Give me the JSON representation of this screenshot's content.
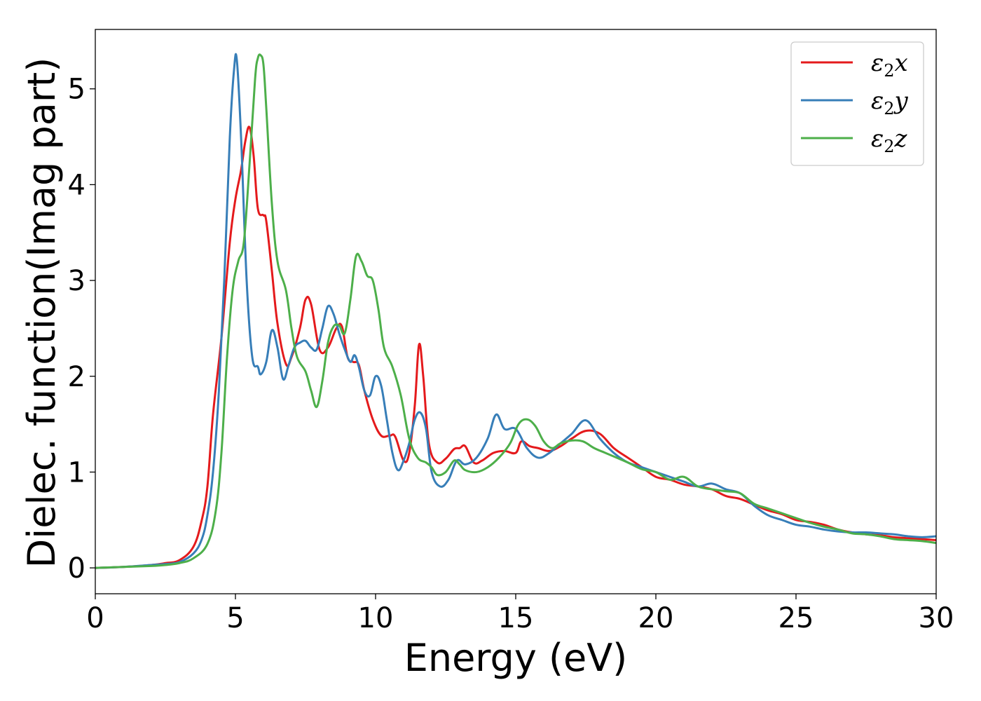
{
  "chart_data": {
    "type": "line",
    "title": "",
    "xlabel": "Energy (eV)",
    "ylabel": "Dielec. function(Imag part)",
    "xlim": [
      0,
      30
    ],
    "ylim": [
      -0.27,
      5.62
    ],
    "xticks": [
      0,
      5,
      10,
      15,
      20,
      25,
      30
    ],
    "yticks": [
      0,
      1,
      2,
      3,
      4,
      5
    ],
    "grid": false,
    "legend_position": "top-right",
    "series": [
      {
        "name": "ε2x",
        "legend_symbol": "ε",
        "legend_sub": "2",
        "legend_var": "x",
        "color": "#e41a1c",
        "x": [
          0,
          1,
          2,
          2.5,
          3,
          3.5,
          3.8,
          4.0,
          4.2,
          4.5,
          4.8,
          5.0,
          5.2,
          5.35,
          5.5,
          5.65,
          5.8,
          6.0,
          6.1,
          6.3,
          6.5,
          6.8,
          7.0,
          7.3,
          7.5,
          7.7,
          8.0,
          8.3,
          8.6,
          8.8,
          9.0,
          9.2,
          9.4,
          9.6,
          9.9,
          10.2,
          10.5,
          10.7,
          11.0,
          11.2,
          11.4,
          11.55,
          11.7,
          11.9,
          12.2,
          12.5,
          12.8,
          13.0,
          13.2,
          13.5,
          13.8,
          14.2,
          14.6,
          15.0,
          15.2,
          15.5,
          15.8,
          16.2,
          16.6,
          17.0,
          17.5,
          18.0,
          18.5,
          19.0,
          19.5,
          20.0,
          20.5,
          21.0,
          21.5,
          22.0,
          22.5,
          23.0,
          23.5,
          24.0,
          24.5,
          25.0,
          25.5,
          26.0,
          26.5,
          27.0,
          27.5,
          28.0,
          28.5,
          29.0,
          29.5,
          30.0
        ],
        "y": [
          0.0,
          0.01,
          0.03,
          0.05,
          0.08,
          0.22,
          0.5,
          0.85,
          1.6,
          2.4,
          3.4,
          3.85,
          4.15,
          4.45,
          4.6,
          4.3,
          3.75,
          3.68,
          3.62,
          3.1,
          2.55,
          2.13,
          2.2,
          2.5,
          2.8,
          2.75,
          2.28,
          2.3,
          2.5,
          2.52,
          2.2,
          2.15,
          2.12,
          1.85,
          1.55,
          1.38,
          1.38,
          1.37,
          1.12,
          1.2,
          1.7,
          2.33,
          2.0,
          1.3,
          1.1,
          1.14,
          1.24,
          1.25,
          1.27,
          1.1,
          1.12,
          1.2,
          1.22,
          1.2,
          1.32,
          1.27,
          1.25,
          1.22,
          1.27,
          1.35,
          1.43,
          1.4,
          1.25,
          1.15,
          1.05,
          0.95,
          0.92,
          0.87,
          0.85,
          0.82,
          0.75,
          0.72,
          0.66,
          0.6,
          0.56,
          0.5,
          0.48,
          0.45,
          0.4,
          0.37,
          0.35,
          0.34,
          0.32,
          0.31,
          0.3,
          0.29
        ]
      },
      {
        "name": "ε2y",
        "legend_symbol": "ε",
        "legend_sub": "2",
        "legend_var": "y",
        "color": "#377eb8",
        "x": [
          0,
          1,
          2,
          2.5,
          3,
          3.5,
          3.8,
          4.0,
          4.2,
          4.4,
          4.6,
          4.8,
          4.95,
          5.05,
          5.2,
          5.4,
          5.6,
          5.8,
          5.9,
          6.1,
          6.3,
          6.5,
          6.7,
          6.9,
          7.1,
          7.3,
          7.5,
          7.7,
          7.9,
          8.1,
          8.3,
          8.5,
          8.7,
          8.9,
          9.1,
          9.25,
          9.4,
          9.6,
          9.8,
          10.0,
          10.2,
          10.4,
          10.6,
          10.8,
          11.0,
          11.2,
          11.4,
          11.6,
          11.8,
          12.0,
          12.3,
          12.6,
          12.9,
          13.2,
          13.6,
          14.0,
          14.3,
          14.6,
          15.0,
          15.4,
          15.8,
          16.2,
          16.6,
          17.0,
          17.5,
          18.0,
          18.5,
          19.0,
          19.5,
          20.0,
          20.5,
          21.0,
          21.5,
          22.0,
          22.5,
          23.0,
          23.5,
          24.0,
          24.5,
          25.0,
          25.5,
          26.0,
          26.5,
          27.0,
          27.5,
          28.0,
          28.5,
          29.0,
          29.5,
          30.0
        ],
        "y": [
          0.0,
          0.01,
          0.03,
          0.04,
          0.06,
          0.15,
          0.3,
          0.55,
          1.0,
          1.8,
          3.0,
          4.5,
          5.2,
          5.3,
          4.5,
          3.0,
          2.2,
          2.1,
          2.02,
          2.15,
          2.48,
          2.3,
          1.97,
          2.12,
          2.3,
          2.35,
          2.37,
          2.3,
          2.28,
          2.5,
          2.73,
          2.65,
          2.45,
          2.28,
          2.15,
          2.22,
          2.1,
          1.85,
          1.8,
          2.0,
          1.9,
          1.55,
          1.2,
          1.02,
          1.12,
          1.3,
          1.55,
          1.62,
          1.45,
          1.0,
          0.85,
          0.92,
          1.12,
          1.08,
          1.15,
          1.35,
          1.6,
          1.45,
          1.45,
          1.25,
          1.15,
          1.2,
          1.3,
          1.4,
          1.54,
          1.35,
          1.2,
          1.1,
          1.05,
          1.0,
          0.95,
          0.9,
          0.85,
          0.88,
          0.82,
          0.78,
          0.65,
          0.55,
          0.5,
          0.45,
          0.43,
          0.4,
          0.38,
          0.37,
          0.37,
          0.36,
          0.35,
          0.33,
          0.32,
          0.33
        ]
      },
      {
        "name": "ε2z",
        "legend_symbol": "ε",
        "legend_sub": "2",
        "legend_var": "z",
        "color": "#4daf4a",
        "x": [
          0,
          1,
          2,
          2.5,
          3,
          3.5,
          4.0,
          4.3,
          4.5,
          4.7,
          4.9,
          5.1,
          5.3,
          5.5,
          5.7,
          5.8,
          5.9,
          6.0,
          6.1,
          6.3,
          6.5,
          6.8,
          7.0,
          7.2,
          7.5,
          7.7,
          7.9,
          8.1,
          8.3,
          8.5,
          8.7,
          8.9,
          9.1,
          9.3,
          9.5,
          9.7,
          9.9,
          10.1,
          10.3,
          10.6,
          10.9,
          11.2,
          11.5,
          11.8,
          12.0,
          12.2,
          12.5,
          12.8,
          13.0,
          13.2,
          13.6,
          14.0,
          14.4,
          14.8,
          15.1,
          15.4,
          15.7,
          16.0,
          16.3,
          16.6,
          17.0,
          17.4,
          17.8,
          18.2,
          18.6,
          19.0,
          19.5,
          20.0,
          20.5,
          21.0,
          21.5,
          22.0,
          22.5,
          23.0,
          23.5,
          24.0,
          24.5,
          25.0,
          25.5,
          26.0,
          26.5,
          27.0,
          27.5,
          28.0,
          28.5,
          29.0,
          29.5,
          30.0
        ],
        "y": [
          0.0,
          0.01,
          0.02,
          0.03,
          0.05,
          0.1,
          0.25,
          0.6,
          1.2,
          2.2,
          2.9,
          3.2,
          3.4,
          4.2,
          5.1,
          5.32,
          5.35,
          5.25,
          4.8,
          3.8,
          3.2,
          2.9,
          2.5,
          2.2,
          2.05,
          1.85,
          1.68,
          1.95,
          2.35,
          2.52,
          2.53,
          2.45,
          2.8,
          3.25,
          3.2,
          3.05,
          3.0,
          2.7,
          2.3,
          2.1,
          1.8,
          1.35,
          1.15,
          1.1,
          1.05,
          0.97,
          1.0,
          1.12,
          1.08,
          1.02,
          1.0,
          1.05,
          1.15,
          1.3,
          1.5,
          1.55,
          1.48,
          1.32,
          1.25,
          1.3,
          1.33,
          1.32,
          1.25,
          1.2,
          1.15,
          1.1,
          1.03,
          1.0,
          0.92,
          0.95,
          0.85,
          0.82,
          0.8,
          0.78,
          0.67,
          0.62,
          0.57,
          0.52,
          0.47,
          0.43,
          0.4,
          0.36,
          0.35,
          0.33,
          0.3,
          0.29,
          0.28,
          0.26
        ]
      }
    ]
  }
}
